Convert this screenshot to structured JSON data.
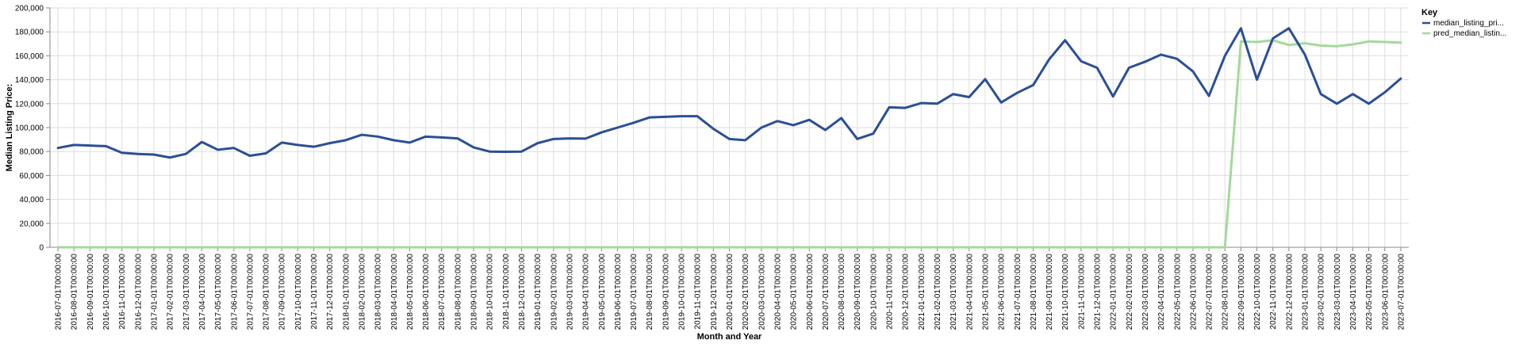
{
  "chart_data": {
    "type": "line",
    "xlabel": "Month and Year",
    "ylabel": "Median Listing Price:",
    "ylim": [
      0,
      200000
    ],
    "yticks": [
      0,
      20000,
      40000,
      60000,
      80000,
      100000,
      120000,
      140000,
      160000,
      180000,
      200000
    ],
    "ytick_labels": [
      "0",
      "20,000",
      "40,000",
      "60,000",
      "80,000",
      "100,000",
      "120,000",
      "140,000",
      "160,000",
      "180,000",
      "200,000"
    ],
    "grid": true,
    "legend": {
      "title": "Key",
      "position": "right"
    },
    "x": [
      "2016-07-01T00:00:00",
      "2016-08-01T00:00:00",
      "2016-09-01T00:00:00",
      "2016-10-01T00:00:00",
      "2016-11-01T00:00:00",
      "2016-12-01T00:00:00",
      "2017-01-01T00:00:00",
      "2017-02-01T00:00:00",
      "2017-03-01T00:00:00",
      "2017-04-01T00:00:00",
      "2017-05-01T00:00:00",
      "2017-06-01T00:00:00",
      "2017-07-01T00:00:00",
      "2017-08-01T00:00:00",
      "2017-09-01T00:00:00",
      "2017-10-01T00:00:00",
      "2017-11-01T00:00:00",
      "2017-12-01T00:00:00",
      "2018-01-01T00:00:00",
      "2018-02-01T00:00:00",
      "2018-03-01T00:00:00",
      "2018-04-01T00:00:00",
      "2018-05-01T00:00:00",
      "2018-06-01T00:00:00",
      "2018-07-01T00:00:00",
      "2018-08-01T00:00:00",
      "2018-09-01T00:00:00",
      "2018-10-01T00:00:00",
      "2018-11-01T00:00:00",
      "2018-12-01T00:00:00",
      "2019-01-01T00:00:00",
      "2019-02-01T00:00:00",
      "2019-03-01T00:00:00",
      "2019-04-01T00:00:00",
      "2019-05-01T00:00:00",
      "2019-06-01T00:00:00",
      "2019-07-01T00:00:00",
      "2019-08-01T00:00:00",
      "2019-09-01T00:00:00",
      "2019-10-01T00:00:00",
      "2019-11-01T00:00:00",
      "2019-12-01T00:00:00",
      "2020-01-01T00:00:00",
      "2020-02-01T00:00:00",
      "2020-03-01T00:00:00",
      "2020-04-01T00:00:00",
      "2020-05-01T00:00:00",
      "2020-06-01T00:00:00",
      "2020-07-01T00:00:00",
      "2020-08-01T00:00:00",
      "2020-09-01T00:00:00",
      "2020-10-01T00:00:00",
      "2020-11-01T00:00:00",
      "2020-12-01T00:00:00",
      "2021-01-01T00:00:00",
      "2021-02-01T00:00:00",
      "2021-03-01T00:00:00",
      "2021-04-01T00:00:00",
      "2021-05-01T00:00:00",
      "2021-06-01T00:00:00",
      "2021-07-01T00:00:00",
      "2021-08-01T00:00:00",
      "2021-09-01T00:00:00",
      "2021-10-01T00:00:00",
      "2021-11-01T00:00:00",
      "2021-12-01T00:00:00",
      "2022-01-01T00:00:00",
      "2022-02-01T00:00:00",
      "2022-03-01T00:00:00",
      "2022-04-01T00:00:00",
      "2022-05-01T00:00:00",
      "2022-06-01T00:00:00",
      "2022-07-01T00:00:00",
      "2022-08-01T00:00:00",
      "2022-09-01T00:00:00",
      "2022-10-01T00:00:00",
      "2022-11-01T00:00:00",
      "2022-12-01T00:00:00",
      "2023-01-01T00:00:00",
      "2023-02-01T00:00:00",
      "2023-03-01T00:00:00",
      "2023-04-01T00:00:00",
      "2023-05-01T00:00:00",
      "2023-06-01T00:00:00",
      "2023-07-01T00:00:00"
    ],
    "series": [
      {
        "name": "median_listing_pri...",
        "color": "#2a4f96",
        "values": [
          83000,
          85500,
          85000,
          84500,
          79000,
          78000,
          77500,
          75000,
          78000,
          88000,
          81500,
          83000,
          76500,
          78500,
          87500,
          85500,
          84000,
          87000,
          89500,
          94000,
          92500,
          89500,
          87500,
          92500,
          91800,
          91000,
          83500,
          80000,
          79800,
          80000,
          87000,
          90500,
          91000,
          90800,
          96000,
          100000,
          104000,
          108500,
          109000,
          109500,
          109500,
          99000,
          90500,
          89500,
          100000,
          105500,
          102000,
          106500,
          98000,
          108000,
          90500,
          95000,
          117000,
          116500,
          120500,
          120000,
          128000,
          125500,
          140500,
          121000,
          129000,
          135500,
          157000,
          173000,
          155500,
          150000,
          126000,
          150000,
          155000,
          161000,
          157500,
          147000,
          126500,
          160000,
          183000,
          140000,
          174500,
          183000,
          161000,
          128000,
          120000,
          128000,
          120000,
          129500,
          141000
        ]
      },
      {
        "name": "pred_median_listin...",
        "color": "#a3d99a",
        "values": [
          0,
          0,
          0,
          0,
          0,
          0,
          0,
          0,
          0,
          0,
          0,
          0,
          0,
          0,
          0,
          0,
          0,
          0,
          0,
          0,
          0,
          0,
          0,
          0,
          0,
          0,
          0,
          0,
          0,
          0,
          0,
          0,
          0,
          0,
          0,
          0,
          0,
          0,
          0,
          0,
          0,
          0,
          0,
          0,
          0,
          0,
          0,
          0,
          0,
          0,
          0,
          0,
          0,
          0,
          0,
          0,
          0,
          0,
          0,
          0,
          0,
          0,
          0,
          0,
          0,
          0,
          0,
          0,
          0,
          0,
          0,
          0,
          0,
          0,
          172000,
          171500,
          173000,
          169000,
          170500,
          168500,
          168000,
          169500,
          172000,
          171500,
          171000
        ]
      }
    ]
  }
}
